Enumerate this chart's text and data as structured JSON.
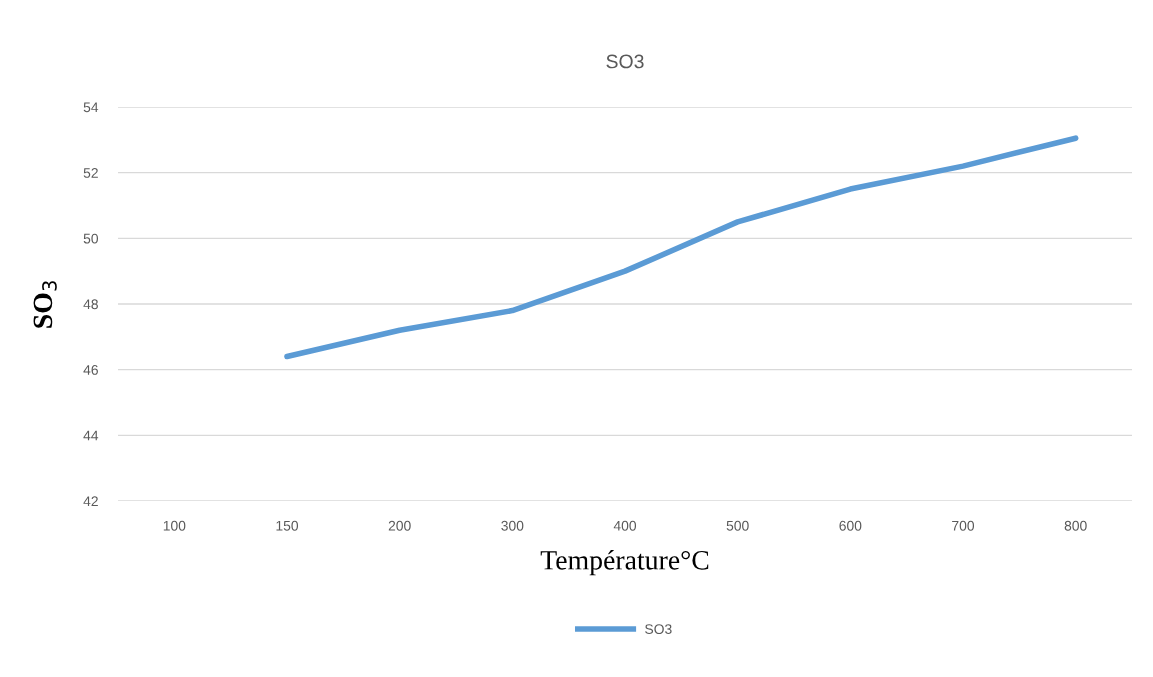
{
  "chart_data": {
    "type": "line",
    "title": "SO3",
    "xlabel": "Température°C",
    "ylabel": "SO$_{3}$",
    "categories": [
      "100",
      "150",
      "200",
      "300",
      "400",
      "500",
      "600",
      "700",
      "800"
    ],
    "series": [
      {
        "name": "SO3",
        "color": "#5b9bd5",
        "values": [
          null,
          46.4,
          47.2,
          47.8,
          49.0,
          50.5,
          51.5,
          52.2,
          53.05
        ]
      }
    ],
    "ylim": [
      42,
      54
    ],
    "yticks": [
      42,
      44,
      46,
      48,
      50,
      52,
      54
    ],
    "grid": "y",
    "legend": "bottom",
    "marker": "none",
    "line_style": "solid"
  }
}
